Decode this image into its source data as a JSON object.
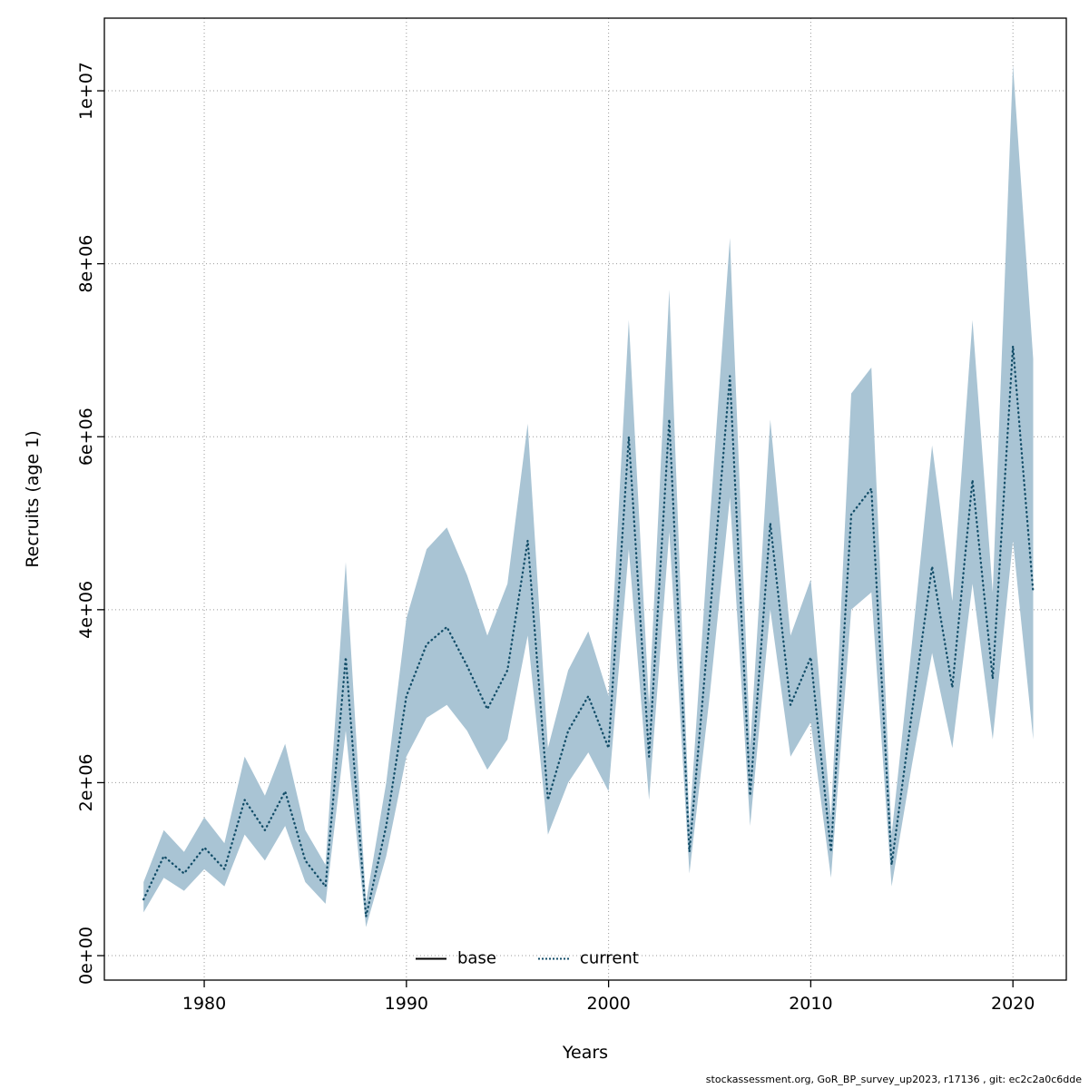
{
  "chart_data": {
    "type": "line",
    "title": "",
    "xlabel": "Years",
    "ylabel": "Recruits (age 1)",
    "grid": true,
    "xlim": [
      1975.06,
      2022.64
    ],
    "ylim": [
      -283000,
      10840000
    ],
    "xticks": [
      1980,
      1990,
      2000,
      2010,
      2020
    ],
    "yticks": [
      0,
      2000000,
      4000000,
      6000000,
      8000000,
      10000000
    ],
    "ytick_labels": [
      "0e+00",
      "2e+06",
      "4e+06",
      "6e+06",
      "8e+06",
      "1e+07"
    ],
    "x": [
      1977,
      1978,
      1979,
      1980,
      1981,
      1982,
      1983,
      1984,
      1985,
      1986,
      1987,
      1988,
      1989,
      1990,
      1991,
      1992,
      1993,
      1994,
      1995,
      1996,
      1997,
      1998,
      1999,
      2000,
      2001,
      2002,
      2003,
      2004,
      2005,
      2006,
      2007,
      2008,
      2009,
      2010,
      2011,
      2012,
      2013,
      2014,
      2015,
      2016,
      2017,
      2018,
      2019,
      2020,
      2021
    ],
    "series": [
      {
        "name": "current",
        "style": "dotted",
        "color": "#124d68",
        "values": [
          650000,
          1150000,
          950000,
          1250000,
          1000000,
          1800000,
          1450000,
          1900000,
          1100000,
          800000,
          3450000,
          450000,
          1500000,
          3000000,
          3600000,
          3800000,
          3350000,
          2850000,
          3300000,
          4800000,
          1800000,
          2600000,
          3000000,
          2400000,
          6000000,
          2300000,
          6200000,
          1200000,
          3900000,
          6700000,
          1850000,
          5000000,
          2900000,
          3450000,
          1200000,
          5100000,
          5400000,
          1050000,
          2800000,
          4500000,
          3100000,
          5500000,
          3200000,
          7050000,
          4200000
        ]
      }
    ],
    "band": {
      "name": "confidence-band",
      "fill": "#a9c4d4",
      "lower": [
        500000,
        900000,
        750000,
        1000000,
        800000,
        1400000,
        1100000,
        1500000,
        850000,
        600000,
        2600000,
        330000,
        1150000,
        2300000,
        2750000,
        2900000,
        2600000,
        2150000,
        2500000,
        3700000,
        1400000,
        2000000,
        2350000,
        1900000,
        4700000,
        1800000,
        4900000,
        950000,
        3000000,
        5300000,
        1500000,
        4000000,
        2300000,
        2700000,
        900000,
        4000000,
        4200000,
        800000,
        2200000,
        3500000,
        2400000,
        4300000,
        2500000,
        4800000,
        2500000
      ],
      "upper": [
        850000,
        1450000,
        1200000,
        1600000,
        1300000,
        2300000,
        1850000,
        2450000,
        1450000,
        1050000,
        4550000,
        620000,
        2000000,
        3900000,
        4700000,
        4950000,
        4400000,
        3700000,
        4300000,
        6150000,
        2400000,
        3300000,
        3750000,
        3000000,
        7350000,
        2900000,
        7700000,
        1500000,
        5000000,
        8300000,
        2400000,
        6200000,
        3700000,
        4350000,
        1600000,
        6500000,
        6800000,
        1400000,
        3600000,
        5900000,
        4100000,
        7350000,
        4200000,
        10300000,
        6900000
      ]
    },
    "legend": [
      {
        "label": "base",
        "style": "solid",
        "color": "#000000"
      },
      {
        "label": "current",
        "style": "dotted",
        "color": "#124d68"
      }
    ],
    "legend_position": "bottom-center",
    "grid_color": "#9a9a9a",
    "box_color": "#000000"
  },
  "footer": {
    "text": "stockassessment.org, GoR_BP_survey_up2023, r17136 , git: ec2c2a0c6dde"
  }
}
